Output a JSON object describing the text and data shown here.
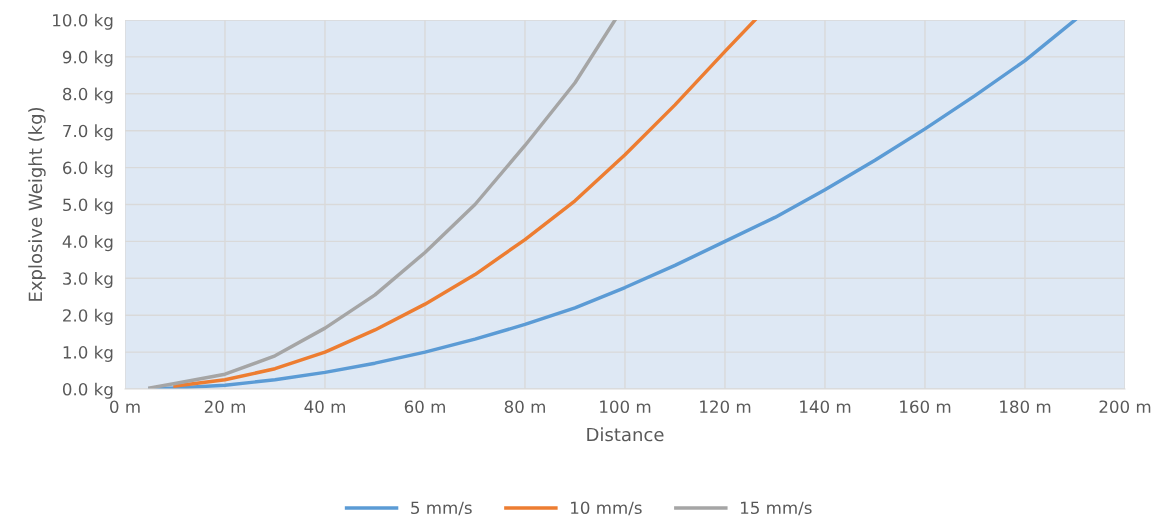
{
  "chart_data": {
    "type": "line",
    "xlabel": "Distance",
    "ylabel": "Explosive Weight (kg)",
    "xlim": [
      0,
      200
    ],
    "xticks": [
      {
        "value": 0,
        "label": "0 m"
      },
      {
        "value": 20,
        "label": "20 m"
      },
      {
        "value": 40,
        "label": "40 m"
      },
      {
        "value": 60,
        "label": "60 m"
      },
      {
        "value": 80,
        "label": "80 m"
      },
      {
        "value": 100,
        "label": "100 m"
      },
      {
        "value": 120,
        "label": "120 m"
      },
      {
        "value": 140,
        "label": "140 m"
      },
      {
        "value": 160,
        "label": "160 m"
      },
      {
        "value": 180,
        "label": "180 m"
      },
      {
        "value": 200,
        "label": "200 m"
      }
    ],
    "ylim": [
      0,
      10
    ],
    "yticks": [
      {
        "value": 0,
        "label": "0.0 kg"
      },
      {
        "value": 1,
        "label": "1.0 kg"
      },
      {
        "value": 2,
        "label": "2.0 kg"
      },
      {
        "value": 3,
        "label": "3.0 kg"
      },
      {
        "value": 4,
        "label": "4.0 kg"
      },
      {
        "value": 5,
        "label": "5.0 kg"
      },
      {
        "value": 6,
        "label": "6.0 kg"
      },
      {
        "value": 7,
        "label": "7.0 kg"
      },
      {
        "value": 8,
        "label": "8.0 kg"
      },
      {
        "value": 9,
        "label": "9.0 kg"
      },
      {
        "value": 10,
        "label": "10.0 kg"
      }
    ],
    "grid": true,
    "legend": "bottom",
    "marker": "none",
    "line_style": "solid",
    "series": [
      {
        "name": "5 mm/s",
        "color": "#5b9bd5",
        "x": [
          5,
          10,
          20,
          30,
          40,
          50,
          60,
          70,
          80,
          90,
          100,
          110,
          120,
          130,
          140,
          150,
          160,
          170,
          180,
          190
        ],
        "values": [
          0.0,
          0.03,
          0.1,
          0.25,
          0.45,
          0.7,
          1.0,
          1.35,
          1.75,
          2.2,
          2.75,
          3.35,
          4.0,
          4.65,
          5.4,
          6.2,
          7.05,
          7.95,
          8.9,
          10.0
        ]
      },
      {
        "name": "10 mm/s",
        "color": "#ed7d31",
        "x": [
          10,
          20,
          30,
          40,
          50,
          60,
          70,
          80,
          90,
          100,
          110,
          120,
          126
        ],
        "values": [
          0.08,
          0.25,
          0.55,
          1.0,
          1.6,
          2.3,
          3.1,
          4.05,
          5.1,
          6.35,
          7.7,
          9.15,
          10.0
        ]
      },
      {
        "name": "15 mm/s",
        "color": "#a5a5a5",
        "x": [
          5,
          10,
          20,
          30,
          40,
          50,
          60,
          70,
          80,
          90,
          98
        ],
        "values": [
          0.03,
          0.15,
          0.4,
          0.9,
          1.65,
          2.55,
          3.7,
          5.0,
          6.6,
          8.3,
          10.0
        ]
      }
    ]
  }
}
